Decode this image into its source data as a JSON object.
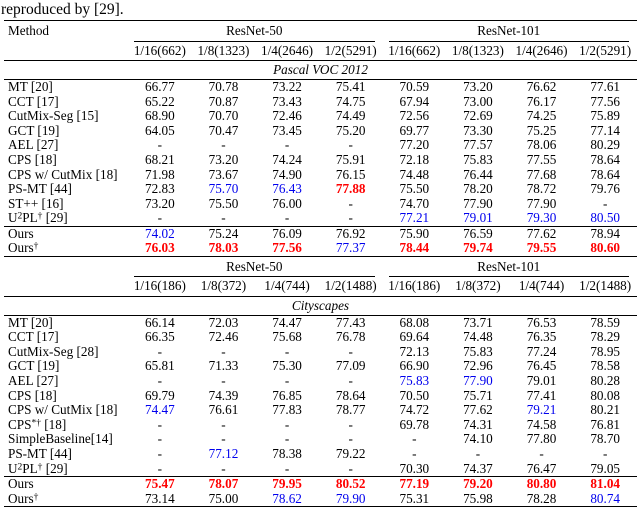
{
  "caption": "reproduced by [29].",
  "colors": {
    "best": "#ff0000",
    "second_best": "#0000ee",
    "text": "#000000"
  },
  "table": {
    "sections": [
      {
        "corner_label": "Method",
        "backbones": [
          "ResNet-50",
          "ResNet-101"
        ],
        "col_headers": [
          "1/16(662)",
          "1/8(1323)",
          "1/4(2646)",
          "1/2(5291)",
          "1/16(662)",
          "1/8(1323)",
          "1/4(2646)",
          "1/2(5291)"
        ],
        "title": "Pascal VOC 2012",
        "rows": [
          {
            "method": [
              {
                "t": "MT [20]"
              }
            ],
            "cells": [
              {
                "t": "66.77"
              },
              {
                "t": "70.78"
              },
              {
                "t": "73.22"
              },
              {
                "t": "75.41"
              },
              {
                "t": "70.59"
              },
              {
                "t": "73.20"
              },
              {
                "t": "76.62"
              },
              {
                "t": "77.61"
              }
            ]
          },
          {
            "method": [
              {
                "t": "CCT [17]"
              }
            ],
            "cells": [
              {
                "t": "65.22"
              },
              {
                "t": "70.87"
              },
              {
                "t": "73.43"
              },
              {
                "t": "74.75"
              },
              {
                "t": "67.94"
              },
              {
                "t": "73.00"
              },
              {
                "t": "76.17"
              },
              {
                "t": "77.56"
              }
            ]
          },
          {
            "method": [
              {
                "t": "CutMix-Seg [15]"
              }
            ],
            "cells": [
              {
                "t": "68.90"
              },
              {
                "t": "70.70"
              },
              {
                "t": "72.46"
              },
              {
                "t": "74.49"
              },
              {
                "t": "72.56"
              },
              {
                "t": "72.69"
              },
              {
                "t": "74.25"
              },
              {
                "t": "75.89"
              }
            ]
          },
          {
            "method": [
              {
                "t": "GCT [19]"
              }
            ],
            "cells": [
              {
                "t": "64.05"
              },
              {
                "t": "70.47"
              },
              {
                "t": "73.45"
              },
              {
                "t": "75.20"
              },
              {
                "t": "69.77"
              },
              {
                "t": "73.30"
              },
              {
                "t": "75.25"
              },
              {
                "t": "77.14"
              }
            ]
          },
          {
            "method": [
              {
                "t": "AEL [27]"
              }
            ],
            "cells": [
              {
                "t": "-"
              },
              {
                "t": "-"
              },
              {
                "t": "-"
              },
              {
                "t": "-"
              },
              {
                "t": "77.20"
              },
              {
                "t": "77.57"
              },
              {
                "t": "78.06"
              },
              {
                "t": "80.29"
              }
            ]
          },
          {
            "method": [
              {
                "t": "CPS [18]"
              }
            ],
            "cells": [
              {
                "t": "68.21"
              },
              {
                "t": "73.20"
              },
              {
                "t": "74.24"
              },
              {
                "t": "75.91"
              },
              {
                "t": "72.18"
              },
              {
                "t": "75.83"
              },
              {
                "t": "77.55"
              },
              {
                "t": "78.64"
              }
            ]
          },
          {
            "method": [
              {
                "t": "CPS w/ CutMix [18]"
              }
            ],
            "cells": [
              {
                "t": "71.98"
              },
              {
                "t": "73.67"
              },
              {
                "t": "74.90"
              },
              {
                "t": "76.15"
              },
              {
                "t": "74.48"
              },
              {
                "t": "76.44"
              },
              {
                "t": "77.68"
              },
              {
                "t": "78.64"
              }
            ]
          },
          {
            "method": [
              {
                "t": "PS-MT [44]"
              }
            ],
            "cells": [
              {
                "t": "72.83"
              },
              {
                "t": "75.70",
                "c": "blue"
              },
              {
                "t": "76.43",
                "c": "blue"
              },
              {
                "t": "77.88",
                "c": "red"
              },
              {
                "t": "75.50"
              },
              {
                "t": "78.20"
              },
              {
                "t": "78.72"
              },
              {
                "t": "79.76"
              }
            ]
          },
          {
            "method": [
              {
                "t": "ST++ [16]"
              }
            ],
            "cells": [
              {
                "t": "73.20"
              },
              {
                "t": "75.50"
              },
              {
                "t": "76.00"
              },
              {
                "t": "-"
              },
              {
                "t": "74.70"
              },
              {
                "t": "77.90"
              },
              {
                "t": "77.90"
              },
              {
                "t": "-"
              }
            ]
          },
          {
            "method": [
              {
                "t": "U"
              },
              {
                "t": "2",
                "sup": true
              },
              {
                "t": "PL"
              },
              {
                "t": "†",
                "sup": true
              },
              {
                "t": " [29]"
              }
            ],
            "cells": [
              {
                "t": "-"
              },
              {
                "t": "-"
              },
              {
                "t": "-"
              },
              {
                "t": "-"
              },
              {
                "t": "77.21",
                "c": "blue"
              },
              {
                "t": "79.01",
                "c": "blue"
              },
              {
                "t": "79.30",
                "c": "blue"
              },
              {
                "t": "80.50",
                "c": "blue"
              }
            ]
          },
          {
            "method": [
              {
                "t": "Ours"
              }
            ],
            "rule_above": true,
            "cells": [
              {
                "t": "74.02",
                "c": "blue"
              },
              {
                "t": "75.24"
              },
              {
                "t": "76.09"
              },
              {
                "t": "76.92"
              },
              {
                "t": "75.90"
              },
              {
                "t": "76.59"
              },
              {
                "t": "77.62"
              },
              {
                "t": "78.94"
              }
            ]
          },
          {
            "method": [
              {
                "t": "Ours"
              },
              {
                "t": "†",
                "sup": true
              }
            ],
            "cells": [
              {
                "t": "76.03",
                "c": "red"
              },
              {
                "t": "78.03",
                "c": "red"
              },
              {
                "t": "77.56",
                "c": "red"
              },
              {
                "t": "77.37",
                "c": "blue"
              },
              {
                "t": "78.44",
                "c": "red"
              },
              {
                "t": "79.74",
                "c": "red"
              },
              {
                "t": "79.55",
                "c": "red"
              },
              {
                "t": "80.60",
                "c": "red"
              }
            ]
          }
        ]
      },
      {
        "corner_label": "",
        "backbones": [
          "ResNet-50",
          "ResNet-101"
        ],
        "col_headers": [
          "1/16(186)",
          "1/8(372)",
          "1/4(744)",
          "1/2(1488)",
          "1/16(186)",
          "1/8(372)",
          "1/4(744)",
          "1/2(1488)"
        ],
        "title": "Cityscapes",
        "rows": [
          {
            "method": [
              {
                "t": "MT [20]"
              }
            ],
            "cells": [
              {
                "t": "66.14"
              },
              {
                "t": "72.03"
              },
              {
                "t": "74.47"
              },
              {
                "t": "77.43"
              },
              {
                "t": "68.08"
              },
              {
                "t": "73.71"
              },
              {
                "t": "76.53"
              },
              {
                "t": "78.59"
              }
            ]
          },
          {
            "method": [
              {
                "t": "CCT [17]"
              }
            ],
            "cells": [
              {
                "t": "66.35"
              },
              {
                "t": "72.46"
              },
              {
                "t": "75.68"
              },
              {
                "t": "76.78"
              },
              {
                "t": "69.64"
              },
              {
                "t": "74.48"
              },
              {
                "t": "76.35"
              },
              {
                "t": "78.29"
              }
            ]
          },
          {
            "method": [
              {
                "t": "CutMix-Seg [28]"
              }
            ],
            "cells": [
              {
                "t": "-"
              },
              {
                "t": "-"
              },
              {
                "t": "-"
              },
              {
                "t": "-"
              },
              {
                "t": "72.13"
              },
              {
                "t": "75.83"
              },
              {
                "t": "77.24"
              },
              {
                "t": "78.95"
              }
            ]
          },
          {
            "method": [
              {
                "t": "GCT [19]"
              }
            ],
            "cells": [
              {
                "t": "65.81"
              },
              {
                "t": "71.33"
              },
              {
                "t": "75.30"
              },
              {
                "t": "77.09"
              },
              {
                "t": "66.90"
              },
              {
                "t": "72.96"
              },
              {
                "t": "76.45"
              },
              {
                "t": "78.58"
              }
            ]
          },
          {
            "method": [
              {
                "t": "AEL [27]"
              }
            ],
            "cells": [
              {
                "t": "-"
              },
              {
                "t": "-"
              },
              {
                "t": "-"
              },
              {
                "t": "-"
              },
              {
                "t": "75.83",
                "c": "blue"
              },
              {
                "t": "77.90",
                "c": "blue"
              },
              {
                "t": "79.01"
              },
              {
                "t": "80.28"
              }
            ]
          },
          {
            "method": [
              {
                "t": "CPS [18]"
              }
            ],
            "cells": [
              {
                "t": "69.79"
              },
              {
                "t": "74.39"
              },
              {
                "t": "76.85"
              },
              {
                "t": "78.64"
              },
              {
                "t": "70.50"
              },
              {
                "t": "75.71"
              },
              {
                "t": "77.41"
              },
              {
                "t": "80.08"
              }
            ]
          },
          {
            "method": [
              {
                "t": "CPS w/ CutMix [18]"
              }
            ],
            "cells": [
              {
                "t": "74.47",
                "c": "blue"
              },
              {
                "t": "76.61"
              },
              {
                "t": "77.83"
              },
              {
                "t": "78.77"
              },
              {
                "t": "74.72"
              },
              {
                "t": "77.62"
              },
              {
                "t": "79.21",
                "c": "blue"
              },
              {
                "t": "80.21"
              }
            ]
          },
          {
            "method": [
              {
                "t": "CPS"
              },
              {
                "t": "*†",
                "sup": true
              },
              {
                "t": " [18]"
              }
            ],
            "cells": [
              {
                "t": "-"
              },
              {
                "t": "-"
              },
              {
                "t": "-"
              },
              {
                "t": "-"
              },
              {
                "t": "69.78"
              },
              {
                "t": "74.31"
              },
              {
                "t": "74.58"
              },
              {
                "t": "76.81"
              }
            ]
          },
          {
            "method": [
              {
                "t": "SimpleBaseline[14]"
              }
            ],
            "cells": [
              {
                "t": "-"
              },
              {
                "t": "-"
              },
              {
                "t": "-"
              },
              {
                "t": "-"
              },
              {
                "t": "-"
              },
              {
                "t": "74.10"
              },
              {
                "t": "77.80"
              },
              {
                "t": "78.70"
              }
            ]
          },
          {
            "method": [
              {
                "t": "PS-MT [44]"
              }
            ],
            "cells": [
              {
                "t": "-"
              },
              {
                "t": "77.12",
                "c": "blue"
              },
              {
                "t": "78.38"
              },
              {
                "t": "79.22"
              },
              {
                "t": "-"
              },
              {
                "t": "-"
              },
              {
                "t": "-"
              },
              {
                "t": "-"
              }
            ]
          },
          {
            "method": [
              {
                "t": "U"
              },
              {
                "t": "2",
                "sup": true
              },
              {
                "t": "PL"
              },
              {
                "t": "†",
                "sup": true
              },
              {
                "t": " [29]"
              }
            ],
            "cells": [
              {
                "t": "-"
              },
              {
                "t": "-"
              },
              {
                "t": "-"
              },
              {
                "t": "-"
              },
              {
                "t": "70.30"
              },
              {
                "t": "74.37"
              },
              {
                "t": "76.47"
              },
              {
                "t": "79.05"
              }
            ]
          },
          {
            "method": [
              {
                "t": "Ours"
              }
            ],
            "rule_above": true,
            "cells": [
              {
                "t": "75.47",
                "c": "red"
              },
              {
                "t": "78.07",
                "c": "red"
              },
              {
                "t": "79.95",
                "c": "red"
              },
              {
                "t": "80.52",
                "c": "red"
              },
              {
                "t": "77.19",
                "c": "red"
              },
              {
                "t": "79.20",
                "c": "red"
              },
              {
                "t": "80.80",
                "c": "red"
              },
              {
                "t": "81.04",
                "c": "red"
              }
            ]
          },
          {
            "method": [
              {
                "t": "Ours"
              },
              {
                "t": "†",
                "sup": true
              }
            ],
            "cells": [
              {
                "t": "73.14"
              },
              {
                "t": "75.00"
              },
              {
                "t": "78.62",
                "c": "blue"
              },
              {
                "t": "79.90",
                "c": "blue"
              },
              {
                "t": "75.31"
              },
              {
                "t": "75.98"
              },
              {
                "t": "78.28"
              },
              {
                "t": "80.74",
                "c": "blue"
              }
            ]
          }
        ]
      }
    ]
  }
}
